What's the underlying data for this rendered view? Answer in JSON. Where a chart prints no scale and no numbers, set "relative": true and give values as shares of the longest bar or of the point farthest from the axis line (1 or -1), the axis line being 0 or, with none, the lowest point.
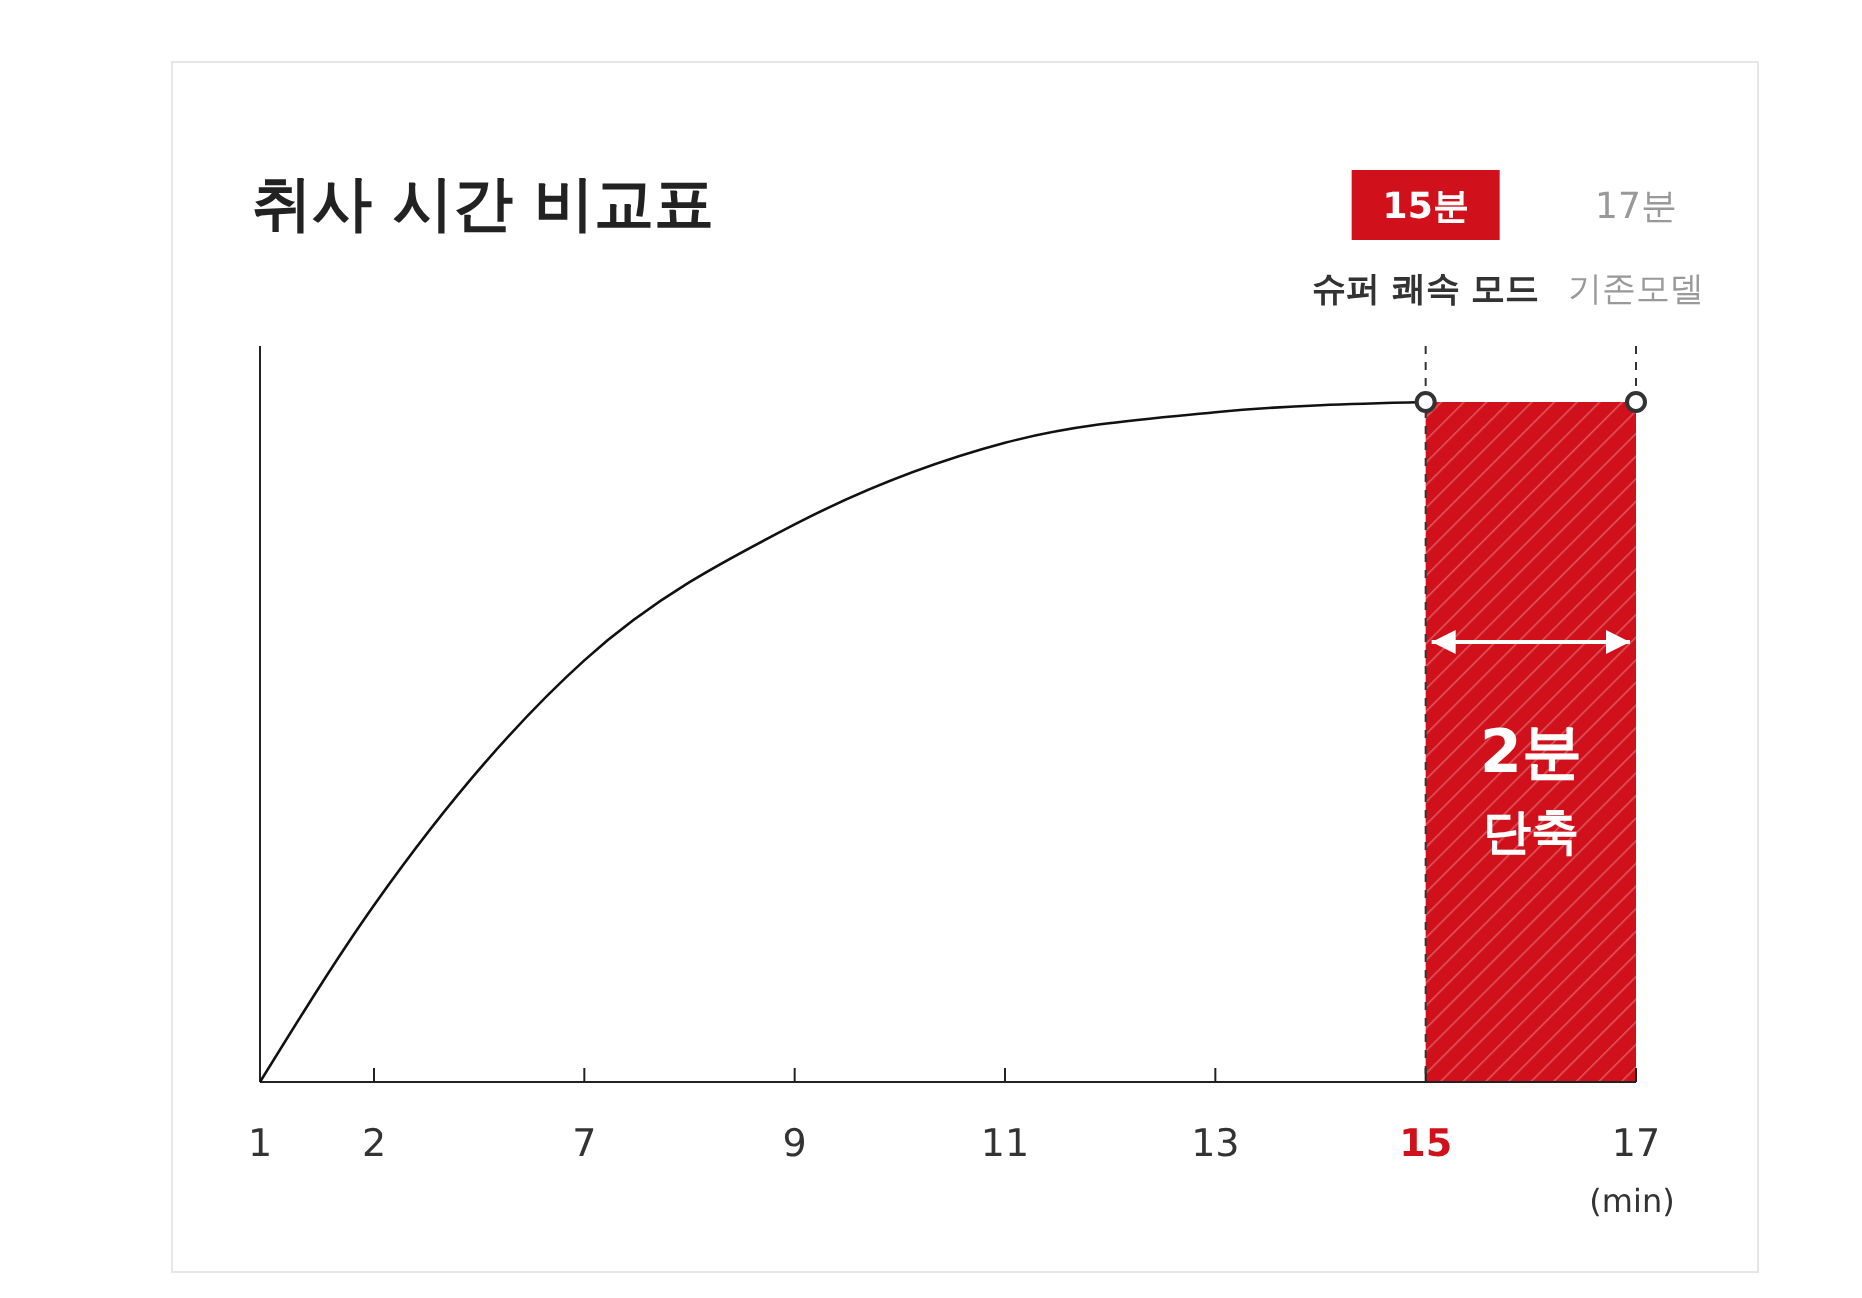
{
  "chart_data": {
    "type": "line",
    "title": "취사 시간 비교표",
    "xlabel": "(min)",
    "relative": true,
    "categories": [
      "1",
      "2",
      "7",
      "9",
      "11",
      "13",
      "15",
      "17"
    ],
    "series": [
      {
        "color": "#111111",
        "values": [
          0,
          0.26,
          0.62,
          0.82,
          0.94,
          0.985,
          1,
          null
        ]
      },
      {
        "type": "scatter",
        "color": "#333333",
        "x": [
          "15",
          "17"
        ],
        "values": [
          1,
          1
        ],
        "marker": "circle"
      }
    ],
    "ref_lines": [
      {
        "axis": "x",
        "value": "15",
        "label": "슈퍼 쾌속 모드",
        "color": "#333333",
        "line_style": "dashed"
      },
      {
        "axis": "x",
        "value": "17",
        "label": "기존모델",
        "color": "#333333",
        "line_style": "dashed"
      }
    ],
    "bands": [
      {
        "axis": "x",
        "from": "15",
        "to": "17",
        "label": "2분 단축",
        "color": "#d0111b"
      }
    ],
    "annotations": [
      "15분",
      "17분"
    ],
    "grid": false
  }
}
